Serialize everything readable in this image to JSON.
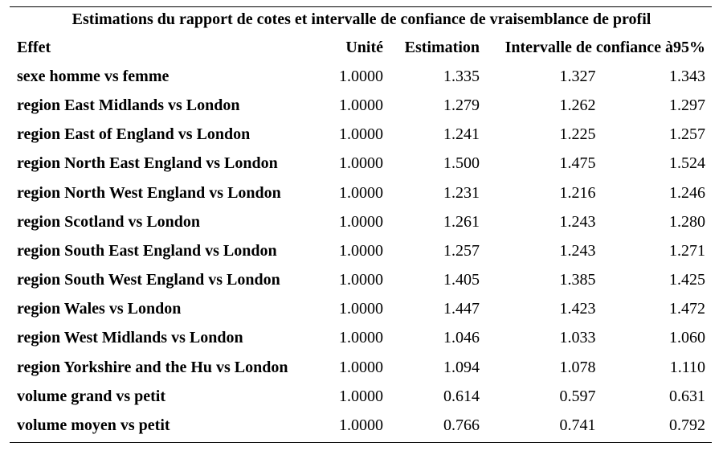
{
  "title": "Estimations du rapport de cotes et intervalle de confiance de vraisemblance de profil",
  "headers": {
    "effect": "Effet",
    "unit": "Unité",
    "estimate": "Estimation",
    "ci": "Intervalle de confiance à95%"
  },
  "rows": [
    {
      "effect": "sexe homme vs femme",
      "unit": "1.0000",
      "estimate": "1.335",
      "lower": "1.327",
      "upper": "1.343"
    },
    {
      "effect": "region East Midlands vs London",
      "unit": "1.0000",
      "estimate": "1.279",
      "lower": "1.262",
      "upper": "1.297"
    },
    {
      "effect": "region East of England vs London",
      "unit": "1.0000",
      "estimate": "1.241",
      "lower": "1.225",
      "upper": "1.257"
    },
    {
      "effect": "region North East England vs London",
      "unit": "1.0000",
      "estimate": "1.500",
      "lower": "1.475",
      "upper": "1.524"
    },
    {
      "effect": "region North West England vs London",
      "unit": "1.0000",
      "estimate": "1.231",
      "lower": "1.216",
      "upper": "1.246"
    },
    {
      "effect": "region Scotland vs London",
      "unit": "1.0000",
      "estimate": "1.261",
      "lower": "1.243",
      "upper": "1.280"
    },
    {
      "effect": "region South East England vs London",
      "unit": "1.0000",
      "estimate": "1.257",
      "lower": "1.243",
      "upper": "1.271"
    },
    {
      "effect": "region South West England vs London",
      "unit": "1.0000",
      "estimate": "1.405",
      "lower": "1.385",
      "upper": "1.425"
    },
    {
      "effect": "region Wales vs London",
      "unit": "1.0000",
      "estimate": "1.447",
      "lower": "1.423",
      "upper": "1.472"
    },
    {
      "effect": "region West Midlands vs London",
      "unit": "1.0000",
      "estimate": "1.046",
      "lower": "1.033",
      "upper": "1.060"
    },
    {
      "effect": "region Yorkshire and the Hu vs London",
      "unit": "1.0000",
      "estimate": "1.094",
      "lower": "1.078",
      "upper": "1.110"
    },
    {
      "effect": "volume grand vs petit",
      "unit": "1.0000",
      "estimate": "0.614",
      "lower": "0.597",
      "upper": "0.631"
    },
    {
      "effect": "volume moyen vs petit",
      "unit": "1.0000",
      "estimate": "0.766",
      "lower": "0.741",
      "upper": "0.792"
    }
  ]
}
